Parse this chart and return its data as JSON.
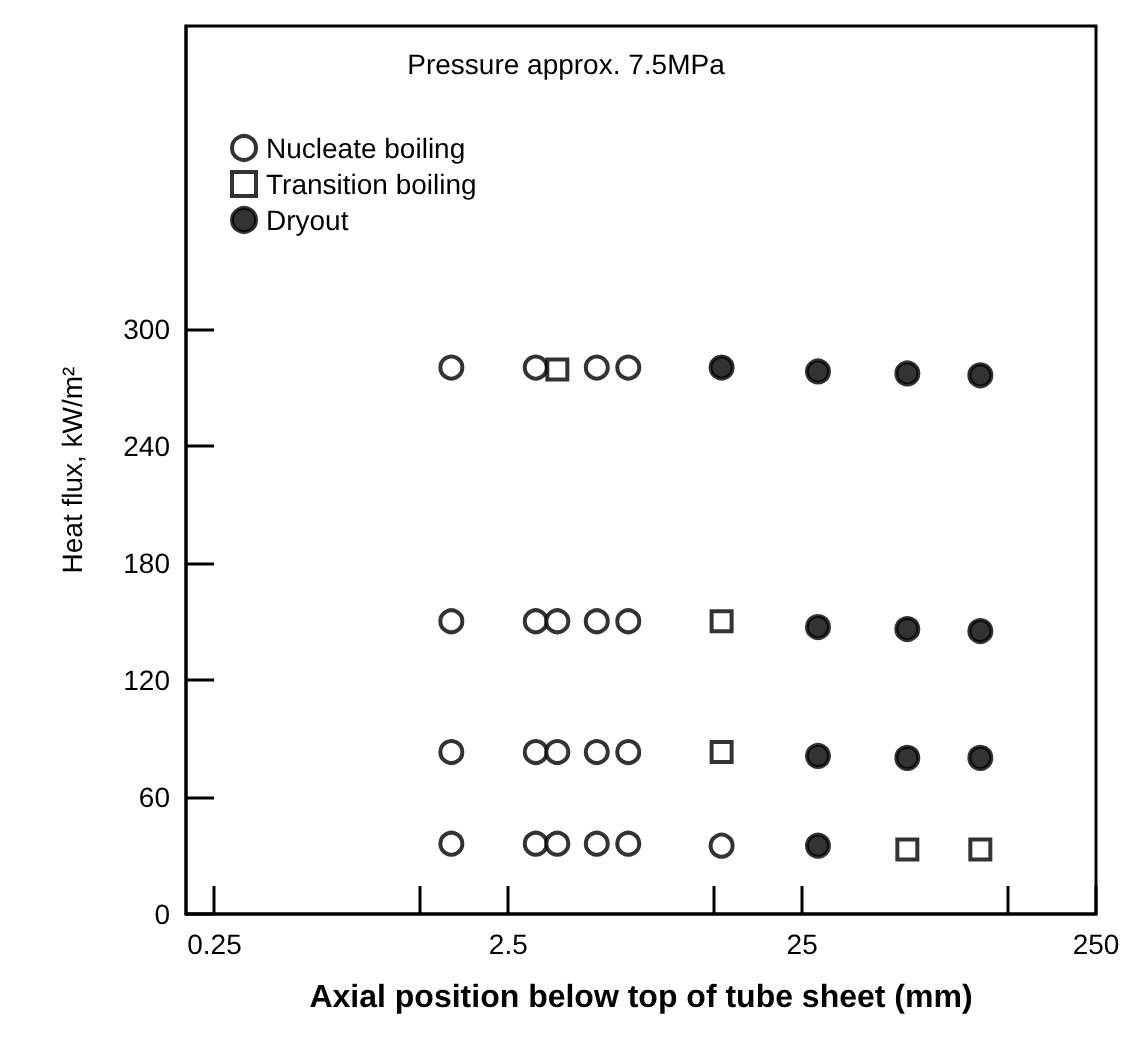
{
  "chart_data": {
    "type": "scatter",
    "title": "Pressure approx. 7.5MPa",
    "xlabel": "Axial position below top of tube sheet (mm)",
    "ylabel": "Heat flux, kW/m²",
    "log": "x",
    "xlim": [
      0.2,
      250
    ],
    "xticks": [
      0.25,
      {
        "value": 1.25,
        "label": null
      },
      2.5,
      {
        "value": 12.5,
        "label": null
      },
      25,
      {
        "value": 125,
        "label": null
      },
      250
    ],
    "ylim": [
      0,
      455
    ],
    "yticks": [
      0,
      60,
      120,
      180,
      240,
      300
    ],
    "grid": false,
    "legend": "top left",
    "series": [
      {
        "name": "Nucleate boiling",
        "marker": "circle",
        "color": "#ffffff",
        "x": [
          1.6,
          3.1,
          5.0,
          6.4,
          1.6,
          3.1,
          3.67,
          5.0,
          6.4,
          1.6,
          3.1,
          3.67,
          5.0,
          6.4,
          1.6,
          3.1,
          3.67,
          5.0,
          6.4,
          13.3
        ],
        "values": [
          280,
          280,
          280,
          280,
          150,
          150,
          150,
          150,
          150,
          83,
          83,
          83,
          83,
          83,
          36,
          36,
          36,
          36,
          36,
          35
        ]
      },
      {
        "name": "Transition boiling",
        "marker": "square",
        "color": "#ffffff",
        "x": [
          3.67,
          13.3,
          13.3,
          57,
          101
        ],
        "values": [
          279,
          150,
          83,
          33,
          33
        ]
      },
      {
        "name": "Dryout",
        "marker": "circle",
        "color": "#000000",
        "x": [
          13.3,
          28.3,
          57,
          101,
          28.3,
          57,
          101,
          28.3,
          57,
          101,
          28.3
        ],
        "values": [
          280,
          278,
          277,
          276,
          147,
          146,
          145,
          81,
          80,
          80,
          35
        ]
      }
    ]
  }
}
